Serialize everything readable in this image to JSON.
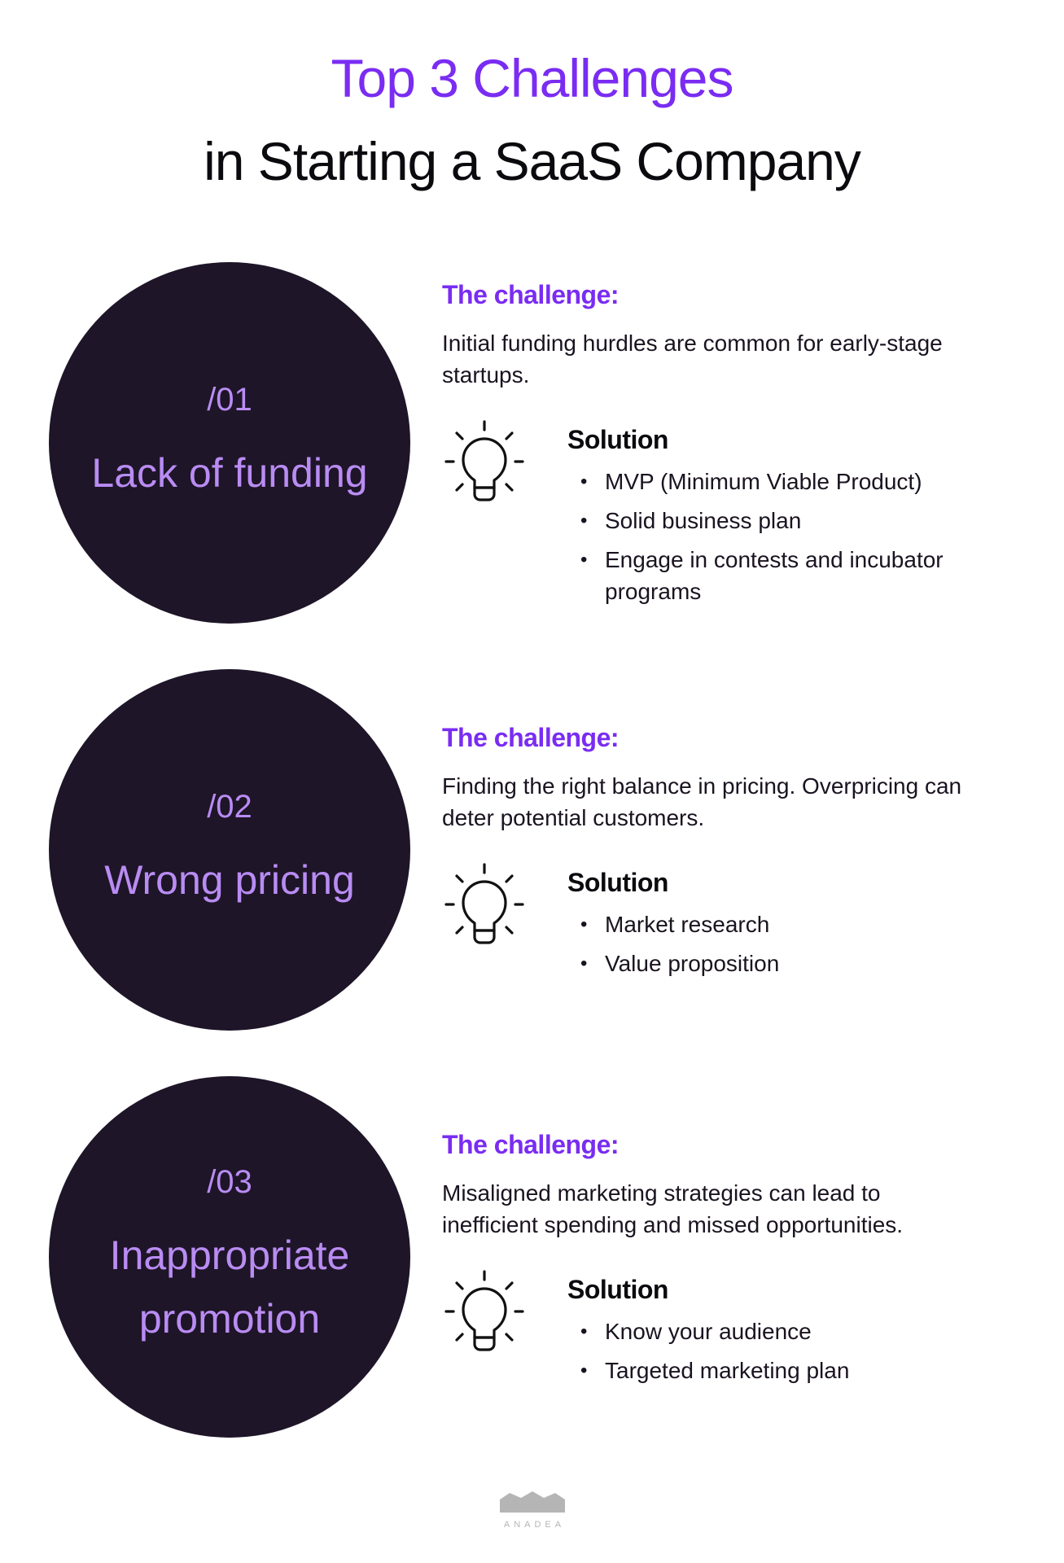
{
  "title": {
    "line1": "Top 3 Challenges",
    "line2": "in Starting a SaaS Company"
  },
  "sections": [
    {
      "number": "/01",
      "name": "Lack of funding",
      "challenge_heading": "The challenge:",
      "challenge_text": "Initial funding hurdles are common for early-stage startups.",
      "solution_heading": "Solution",
      "solutions": [
        "MVP (Minimum Viable Product)",
        "Solid business plan",
        "Engage in contests and incubator programs"
      ]
    },
    {
      "number": "/02",
      "name": "Wrong pricing",
      "challenge_heading": "The challenge:",
      "challenge_text": "Finding the right balance in pricing. Overpricing can deter potential customers.",
      "solution_heading": "Solution",
      "solutions": [
        "Market research",
        "Value proposition"
      ]
    },
    {
      "number": "/03",
      "name": "Inappropriate promotion",
      "challenge_heading": "The challenge:",
      "challenge_text": "Misaligned marketing strategies can lead to inefficient spending and missed opportunities.",
      "solution_heading": "Solution",
      "solutions": [
        "Know your audience",
        "Targeted marketing plan"
      ]
    }
  ],
  "icons": {
    "solution": "lightbulb-icon"
  },
  "bullet": "•",
  "logo": {
    "text": "ANADEA"
  },
  "colors": {
    "accent": "#7a2cf2",
    "circle": "#1e1528",
    "circle_text": "#b98cf3",
    "logo": "#b5b5b5"
  }
}
